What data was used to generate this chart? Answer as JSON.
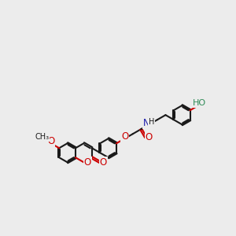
{
  "bg_color": "#ececec",
  "bond_color": "#1a1a1a",
  "bond_lw": 1.5,
  "red": "#cc0000",
  "blue": "#1a1aaa",
  "teal": "#2e8b57",
  "r": 0.52,
  "figsize": [
    3.0,
    3.0
  ],
  "dpi": 100,
  "xlim": [
    0,
    10
  ],
  "ylim": [
    0,
    10
  ],
  "fs": 7.5
}
